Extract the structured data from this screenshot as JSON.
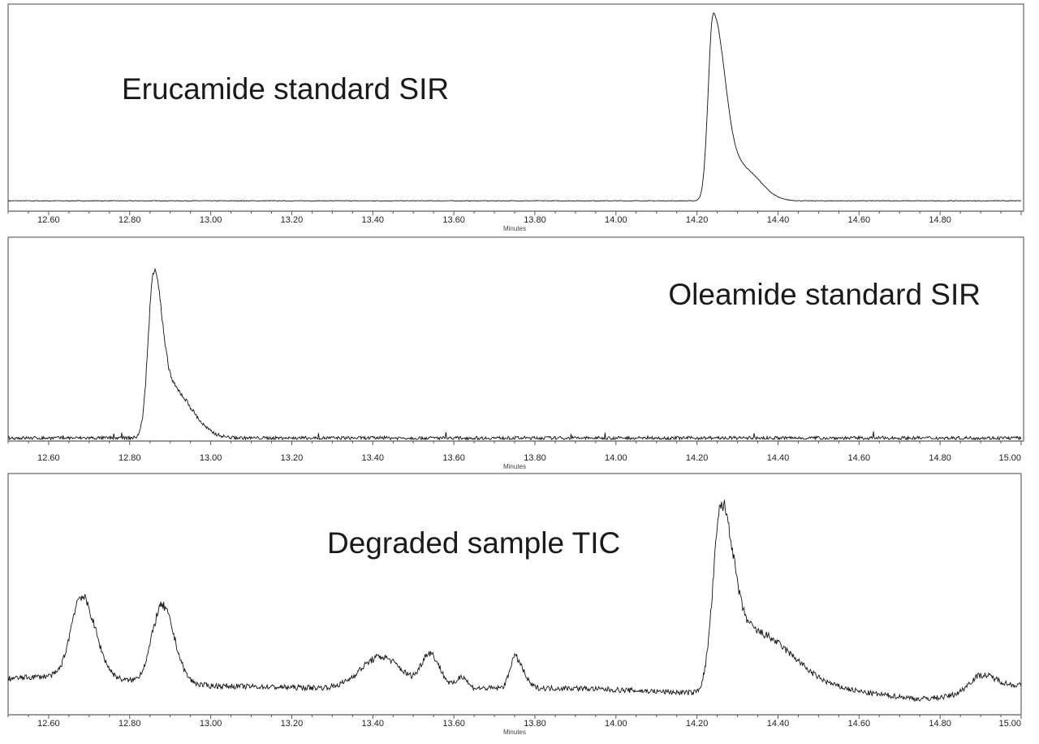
{
  "chart_data": [
    {
      "type": "line",
      "title": "Erucamide standard SIR",
      "xlabel": "Minutes",
      "xlim": [
        12.5,
        15.0
      ],
      "ylim": [
        0,
        100
      ],
      "tick_labels": [
        "12.60",
        "12.80",
        "13.00",
        "13.20",
        "13.40",
        "13.60",
        "13.80",
        "14.00",
        "14.20",
        "14.40",
        "14.60",
        "14.80"
      ],
      "baseline": [
        [
          12.5,
          5
        ],
        [
          15.0,
          5
        ]
      ],
      "peaks": [
        {
          "rt": 14.24,
          "height": 90,
          "sigma_left": 0.012,
          "sigma_right": 0.03
        },
        {
          "rt": 14.32,
          "height": 14,
          "sigma_left": 0.03,
          "sigma_right": 0.04
        }
      ],
      "noise": 0.3
    },
    {
      "type": "line",
      "title": "Oleamide standard SIR",
      "xlabel": "Minutes",
      "xlim": [
        12.5,
        15.0
      ],
      "ylim": [
        0,
        100
      ],
      "tick_labels": [
        "12.60",
        "12.80",
        "13.00",
        "13.20",
        "13.40",
        "13.60",
        "13.80",
        "14.00",
        "14.20",
        "14.40",
        "14.60",
        "14.80",
        "15.00"
      ],
      "baseline": [
        [
          12.5,
          1.5
        ],
        [
          15.0,
          1.5
        ]
      ],
      "peaks": [
        {
          "rt": 12.86,
          "height": 80,
          "sigma_left": 0.014,
          "sigma_right": 0.018
        },
        {
          "rt": 12.9,
          "height": 25,
          "sigma_left": 0.02,
          "sigma_right": 0.05
        }
      ],
      "noise": 1.6
    },
    {
      "type": "line",
      "title": "Degraded sample TIC",
      "xlabel": "Minutes",
      "xlim": [
        12.5,
        15.0
      ],
      "ylim": [
        0,
        100
      ],
      "tick_labels": [
        "12.60",
        "12.80",
        "13.00",
        "13.20",
        "13.40",
        "13.60",
        "13.80",
        "14.00",
        "14.20",
        "14.40",
        "14.60",
        "14.80",
        "15.00"
      ],
      "baseline": [
        [
          12.5,
          15
        ],
        [
          12.6,
          16
        ],
        [
          13.0,
          12
        ],
        [
          13.3,
          11
        ],
        [
          13.9,
          11
        ],
        [
          14.2,
          9
        ],
        [
          14.45,
          14
        ],
        [
          14.62,
          9
        ],
        [
          14.75,
          6.5
        ],
        [
          14.85,
          8
        ],
        [
          15.0,
          12
        ]
      ],
      "peaks": [
        {
          "rt": 12.68,
          "height": 34,
          "sigma_left": 0.025,
          "sigma_right": 0.035
        },
        {
          "rt": 12.88,
          "height": 32,
          "sigma_left": 0.025,
          "sigma_right": 0.03
        },
        {
          "rt": 13.42,
          "height": 13,
          "sigma_left": 0.05,
          "sigma_right": 0.05
        },
        {
          "rt": 13.54,
          "height": 14,
          "sigma_left": 0.02,
          "sigma_right": 0.025
        },
        {
          "rt": 13.62,
          "height": 5,
          "sigma_left": 0.012,
          "sigma_right": 0.012
        },
        {
          "rt": 13.75,
          "height": 13,
          "sigma_left": 0.012,
          "sigma_right": 0.02
        },
        {
          "rt": 14.26,
          "height": 74,
          "sigma_left": 0.02,
          "sigma_right": 0.03
        },
        {
          "rt": 14.34,
          "height": 22,
          "sigma_left": 0.04,
          "sigma_right": 0.08
        },
        {
          "rt": 14.9,
          "height": 7,
          "sigma_left": 0.03,
          "sigma_right": 0.04
        }
      ],
      "noise": 2.2
    }
  ]
}
